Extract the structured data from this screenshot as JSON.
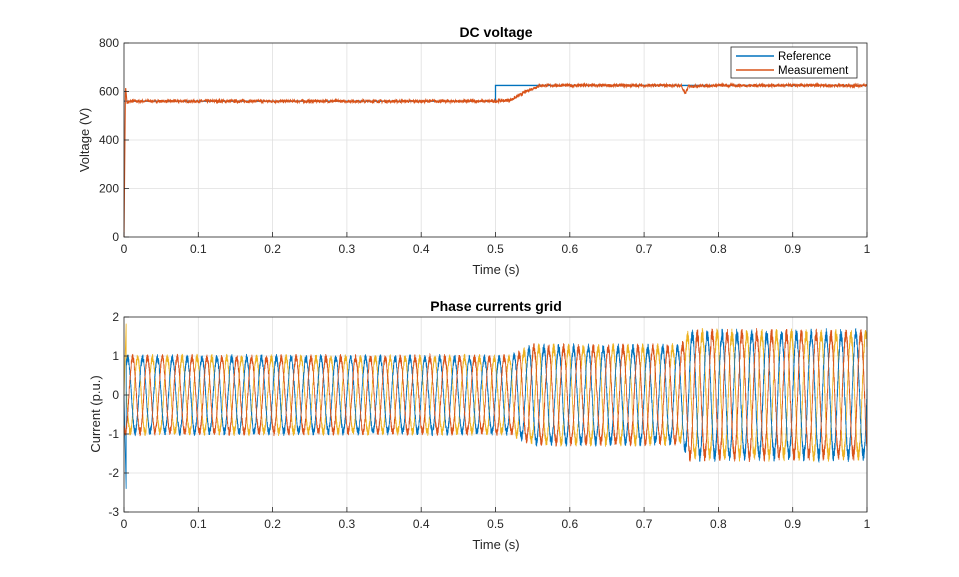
{
  "chart_data": [
    {
      "type": "line",
      "title": "DC voltage",
      "xlabel": "Time (s)",
      "ylabel": "Voltage (V)",
      "xlim": [
        0,
        1
      ],
      "ylim": [
        0,
        800
      ],
      "xticks": [
        "0",
        "0.1",
        "0.2",
        "0.3",
        "0.4",
        "0.5",
        "0.6",
        "0.7",
        "0.8",
        "0.9",
        "1"
      ],
      "yticks": [
        "0",
        "200",
        "400",
        "600",
        "800"
      ],
      "grid": true,
      "legend_position": "top-right",
      "series": [
        {
          "name": "Reference",
          "color": "#0072BD",
          "x": [
            0,
            0.5,
            0.5,
            1
          ],
          "y": [
            560,
            560,
            625,
            625
          ]
        },
        {
          "name": "Measurement",
          "color": "#D95319",
          "x": [
            0,
            0.002,
            0.004,
            0.01,
            0.1,
            0.2,
            0.3,
            0.4,
            0.5,
            0.52,
            0.53,
            0.54,
            0.55,
            0.56,
            0.6,
            0.7,
            0.75,
            0.755,
            0.76,
            0.8,
            0.9,
            1
          ],
          "y": [
            0,
            625,
            555,
            560,
            560,
            560,
            560,
            560,
            560,
            565,
            580,
            598,
            612,
            625,
            625,
            625,
            625,
            590,
            622,
            625,
            625,
            625
          ]
        }
      ]
    },
    {
      "type": "line",
      "title": "Phase currents grid",
      "xlabel": "Time (s)",
      "ylabel": "Current (p.u.)",
      "xlim": [
        0,
        1
      ],
      "ylim": [
        -3,
        2
      ],
      "xticks": [
        "0",
        "0.1",
        "0.2",
        "0.3",
        "0.4",
        "0.5",
        "0.6",
        "0.7",
        "0.8",
        "0.9",
        "1"
      ],
      "yticks": [
        "-3",
        "-2",
        "-1",
        "0",
        "1",
        "2"
      ],
      "grid": true,
      "frequency_hz": 50,
      "phases": 3,
      "series_colors": [
        "#0072BD",
        "#D95319",
        "#EDB120"
      ],
      "amplitude_envelope": {
        "x": [
          0,
          0.52,
          0.55,
          0.75,
          0.76,
          1
        ],
        "amplitude": [
          0.95,
          0.95,
          1.2,
          1.2,
          1.55,
          1.55
        ]
      },
      "startup_transient": {
        "min": -2.5,
        "max": 1.9
      }
    }
  ]
}
